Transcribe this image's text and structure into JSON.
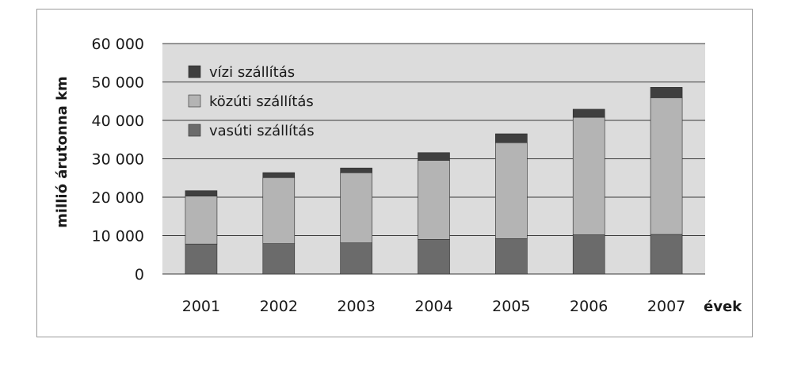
{
  "colors": {
    "plot_background": "#dcdcdc",
    "gridline": "#3a3a3a",
    "vasuti": "#6b6b6b",
    "kozuti": "#b4b4b4",
    "vizi": "#3f3f3f",
    "frame": "#9a9a9a"
  },
  "chart_data": {
    "type": "bar",
    "stacked": true,
    "title": "",
    "xlabel": "évek",
    "ylabel": "millió árutonna km",
    "categories": [
      "2001",
      "2002",
      "2003",
      "2004",
      "2005",
      "2006",
      "2007"
    ],
    "series": [
      {
        "name": "vasúti szállítás",
        "color": "#6b6b6b",
        "values": [
          7800,
          7900,
          8100,
          9000,
          9200,
          10200,
          10300
        ]
      },
      {
        "name": "közúti szállítás",
        "color": "#b4b4b4",
        "values": [
          12500,
          17200,
          18300,
          20600,
          25000,
          30600,
          35600
        ]
      },
      {
        "name": "vízi szállítás",
        "color": "#3f3f3f",
        "values": [
          1400,
          1300,
          1200,
          2000,
          2300,
          2100,
          2700
        ]
      }
    ],
    "ylim": [
      0,
      60000
    ],
    "yticks": [
      0,
      10000,
      20000,
      30000,
      40000,
      50000,
      60000
    ],
    "ytick_labels": [
      "0",
      "10 000",
      "20 000",
      "30 000",
      "40 000",
      "50 000",
      "60 000"
    ],
    "grid": true,
    "legend": {
      "placement": "top-left inside",
      "order": [
        "vízi szállítás",
        "közúti szállítás",
        "vasúti szállítás"
      ]
    }
  }
}
